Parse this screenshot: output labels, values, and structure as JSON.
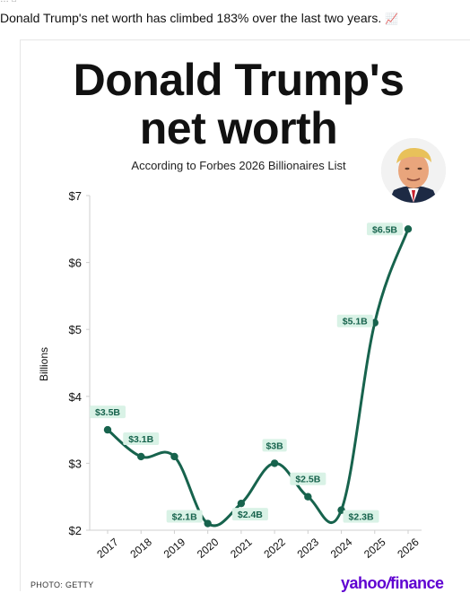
{
  "post": {
    "text": "Donald Trump's net worth has climbed 183% over the last two years.",
    "emoji_icon": "chart-increasing-icon"
  },
  "chart_title_line1": "Donald Trump's",
  "chart_title_line2": "net worth",
  "chart_subtitle": "According to Forbes 2026 Billionaires List",
  "credit": "PHOTO: GETTY",
  "logo": "yahoo/finance",
  "chart_data": {
    "type": "line",
    "title": "Donald Trump's net worth",
    "subtitle": "According to Forbes 2026 Billionaires List",
    "xlabel": "",
    "ylabel": "Billions",
    "x": [
      "2017",
      "2018",
      "2019",
      "2020",
      "2021",
      "2022",
      "2023",
      "2024",
      "2025",
      "2026"
    ],
    "values": [
      3.5,
      3.1,
      3.1,
      2.1,
      2.4,
      3.0,
      2.5,
      2.3,
      5.1,
      6.5
    ],
    "data_labels": [
      "$3.5B",
      "$3.1B",
      "",
      "$2.1B",
      "$2.4B",
      "$3B",
      "$2.5B",
      "$2.3B",
      "$5.1B",
      "$6.5B"
    ],
    "ylim": [
      2,
      7
    ],
    "y_ticks": [
      2,
      3,
      4,
      5,
      6,
      7
    ],
    "y_tick_labels": [
      "$2",
      "$3",
      "$4",
      "$5",
      "$6",
      "$7"
    ],
    "grid": false,
    "line_color": "#17634d",
    "label_bg_color": "#d9f2e6",
    "label_text_color": "#17634d"
  }
}
